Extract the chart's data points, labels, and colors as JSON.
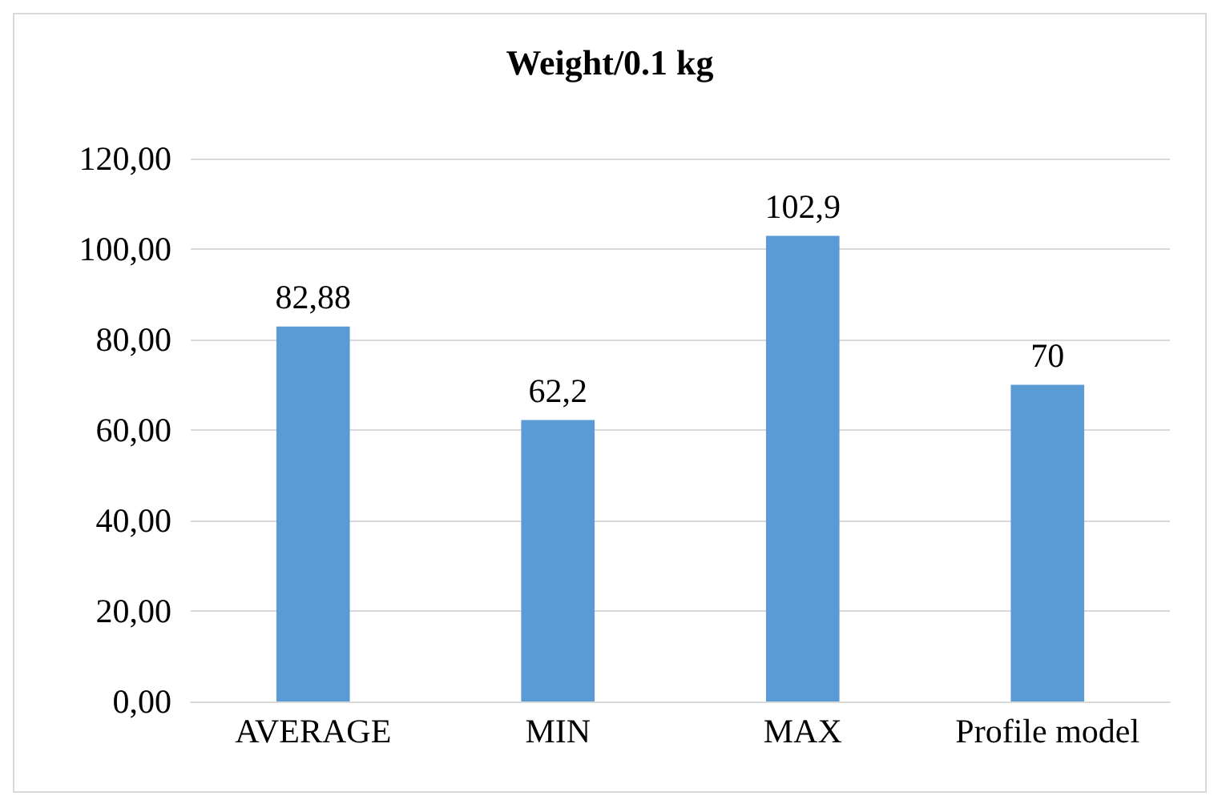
{
  "chart_data": {
    "type": "bar",
    "title": "Weight/0.1 kg",
    "categories": [
      "AVERAGE",
      "MIN",
      "MAX",
      "Profile model"
    ],
    "values": [
      82.88,
      62.2,
      102.9,
      70
    ],
    "value_labels": [
      "82,88",
      "62,2",
      "102,9",
      "70"
    ],
    "color": "#5b9bd5",
    "ylim": [
      0,
      120
    ],
    "yticks": [
      {
        "value": 0,
        "label": "0,00"
      },
      {
        "value": 20,
        "label": "20,00"
      },
      {
        "value": 40,
        "label": "40,00"
      },
      {
        "value": 60,
        "label": "60,00"
      },
      {
        "value": 80,
        "label": "80,00"
      },
      {
        "value": 100,
        "label": "100,00"
      },
      {
        "value": 120,
        "label": "120,00"
      }
    ],
    "grid": "y"
  }
}
